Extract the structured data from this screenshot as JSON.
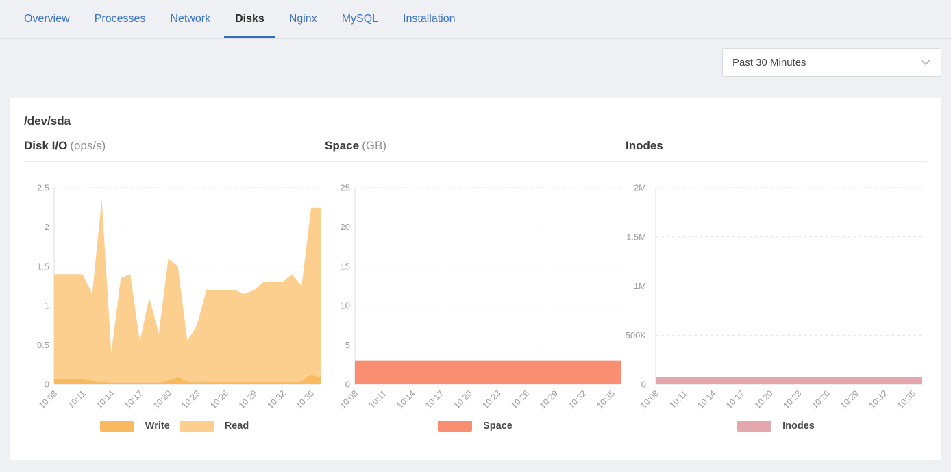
{
  "tabs": [
    {
      "label": "Overview",
      "active": false
    },
    {
      "label": "Processes",
      "active": false
    },
    {
      "label": "Network",
      "active": false
    },
    {
      "label": "Disks",
      "active": true
    },
    {
      "label": "Nginx",
      "active": false
    },
    {
      "label": "MySQL",
      "active": false
    },
    {
      "label": "Installation",
      "active": false
    }
  ],
  "time_range_select": {
    "value": "Past 30 Minutes",
    "icon": "chevron-down-icon"
  },
  "panel": {
    "title": "/dev/sda"
  },
  "colors": {
    "tab_blue": "#3a73c3",
    "active_tab_underline": "#2e6cb5",
    "write": "#f9ba5f",
    "read": "#fccf8e",
    "space": "#f98e72",
    "inodes": "#e4a7ae",
    "grid": "#e3e3e3",
    "axis": "#dcdcdc",
    "tick_text": "#9b9b9b"
  },
  "chart_data": [
    {
      "type": "area",
      "title": "Disk I/O",
      "unit": "(ops/s)",
      "ylim": [
        0,
        2.5
      ],
      "y_max": 2.5,
      "y_ticks": [
        "0",
        "0.5",
        "1",
        "1.5",
        "2",
        "2.5"
      ],
      "y_label_x": 37,
      "x_labels": [
        "10:08",
        "10:11",
        "10:14",
        "10:17",
        "10:20",
        "10:23",
        "10:26",
        "10:29",
        "10:32",
        "10:35"
      ],
      "points_per_label": 3,
      "grid": "dashed",
      "legend_position": "bottom",
      "series": [
        {
          "name": "Read",
          "color": "#fccf8e",
          "values": [
            1.4,
            1.4,
            1.4,
            1.4,
            1.15,
            2.35,
            0.4,
            1.35,
            1.4,
            0.55,
            1.1,
            0.65,
            1.6,
            1.5,
            0.55,
            0.75,
            1.2,
            1.2,
            1.2,
            1.2,
            1.15,
            1.2,
            1.3,
            1.3,
            1.3,
            1.4,
            1.25,
            2.25,
            2.25
          ]
        },
        {
          "name": "Write",
          "color": "#f9ba5f",
          "values": [
            0.07,
            0.07,
            0.07,
            0.07,
            0.05,
            0.03,
            0.02,
            0.02,
            0.02,
            0.02,
            0.02,
            0.02,
            0.05,
            0.09,
            0.04,
            0.02,
            0.03,
            0.03,
            0.03,
            0.03,
            0.03,
            0.03,
            0.03,
            0.03,
            0.03,
            0.03,
            0.04,
            0.12,
            0.08
          ]
        }
      ],
      "legend": [
        {
          "label": "Write",
          "color": "#f9ba5f"
        },
        {
          "label": "Read",
          "color": "#fccf8e"
        }
      ]
    },
    {
      "type": "area",
      "title": "Space",
      "unit": "(GB)",
      "ylim": [
        0,
        25
      ],
      "y_max": 25,
      "y_ticks": [
        "0",
        "5",
        "10",
        "15",
        "20",
        "25"
      ],
      "y_label_x": 37,
      "x_labels": [
        "10:08",
        "10:11",
        "10:14",
        "10:17",
        "10:20",
        "10:23",
        "10:26",
        "10:29",
        "10:32",
        "10:35"
      ],
      "points_per_label": 3,
      "grid": "dashed",
      "legend_position": "bottom",
      "series": [
        {
          "name": "Space",
          "color": "#f98e72",
          "values": [
            3,
            3,
            3,
            3,
            3,
            3,
            3,
            3,
            3,
            3,
            3,
            3,
            3,
            3,
            3,
            3,
            3,
            3,
            3,
            3,
            3,
            3,
            3,
            3,
            3,
            3,
            3,
            3,
            3
          ]
        }
      ],
      "legend": [
        {
          "label": "Space",
          "color": "#f98e72"
        }
      ]
    },
    {
      "type": "area",
      "title": "Inodes",
      "unit": "",
      "ylim": [
        0,
        2000000
      ],
      "y_max": 2000000,
      "y_ticks": [
        "0",
        "500K",
        "1M",
        "1.5M",
        "2M"
      ],
      "y_label_x": 30,
      "x_labels": [
        "10:08",
        "10:11",
        "10:14",
        "10:17",
        "10:20",
        "10:23",
        "10:26",
        "10:29",
        "10:32",
        "10:35"
      ],
      "points_per_label": 3,
      "grid": "dashed",
      "legend_position": "bottom",
      "series": [
        {
          "name": "Inodes",
          "color": "#e4a7ae",
          "values": [
            70000,
            70000,
            70000,
            70000,
            70000,
            70000,
            70000,
            70000,
            70000,
            70000,
            70000,
            70000,
            70000,
            70000,
            70000,
            70000,
            70000,
            70000,
            70000,
            70000,
            70000,
            70000,
            70000,
            70000,
            70000,
            70000,
            70000,
            70000,
            70000
          ]
        }
      ],
      "legend": [
        {
          "label": "Inodes",
          "color": "#e4a7ae"
        }
      ]
    }
  ]
}
